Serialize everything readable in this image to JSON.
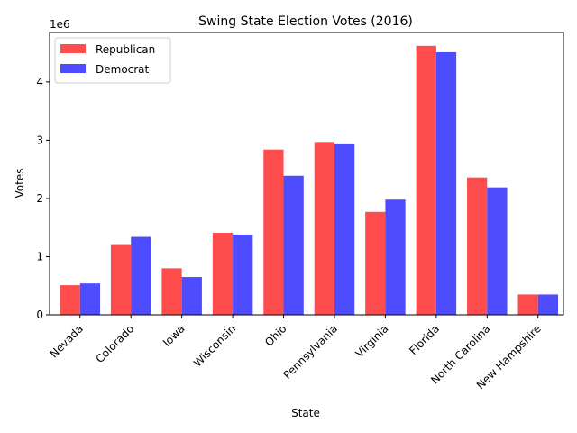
{
  "chart_data": {
    "type": "bar",
    "title": "Swing State Election Votes (2016)",
    "xlabel": "State",
    "ylabel": "Votes",
    "y_offset_text": "1e6",
    "ylim": [
      0,
      4.85
    ],
    "yticks": [
      0,
      1,
      2,
      3,
      4
    ],
    "grid": false,
    "legend_position": "top-left",
    "categories": [
      "Nevada",
      "Colorado",
      "Iowa",
      "Wisconsin",
      "Ohio",
      "Pennsylvania",
      "Virginia",
      "Florida",
      "North Carolina",
      "New Hampshire"
    ],
    "series": [
      {
        "name": "Republican",
        "color": "#ff4d4d",
        "values": [
          0.51,
          1.2,
          0.8,
          1.41,
          2.84,
          2.97,
          1.77,
          4.62,
          2.36,
          0.35
        ]
      },
      {
        "name": "Democrat",
        "color": "#4d4dff",
        "values": [
          0.54,
          1.34,
          0.65,
          1.38,
          2.39,
          2.93,
          1.98,
          4.51,
          2.19,
          0.35
        ]
      }
    ]
  }
}
